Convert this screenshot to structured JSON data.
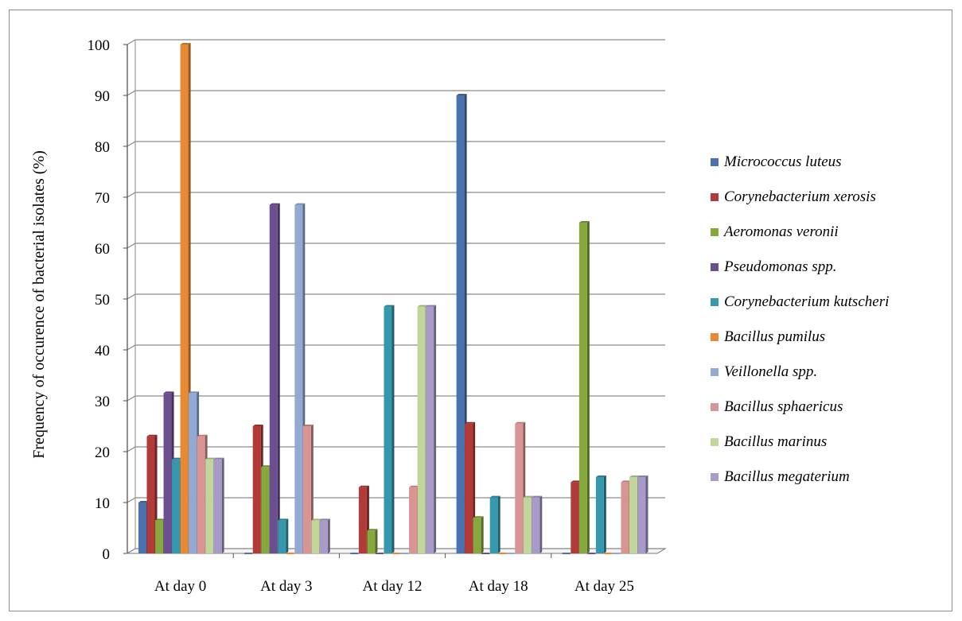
{
  "chart_data": {
    "type": "bar",
    "title": "",
    "xlabel": "",
    "ylabel": "Frequency of occurence of bacterial isolates (%)",
    "ylim": [
      0,
      100
    ],
    "yticks": [
      0,
      10,
      20,
      30,
      40,
      50,
      60,
      70,
      80,
      90,
      100
    ],
    "grid": true,
    "legend_position": "right",
    "categories": [
      "At day 0",
      "At day 3",
      "At day 12",
      "At day 18",
      "At day 25"
    ],
    "series": [
      {
        "name": "Micrococcus luteus",
        "color": "#4a72b0",
        "values": [
          10,
          0,
          0,
          90,
          0
        ]
      },
      {
        "name": "Corynebacterium xerosis",
        "color": "#b23b38",
        "values": [
          23,
          25,
          13,
          25.5,
          14
        ]
      },
      {
        "name": "Aeromonas veronii",
        "color": "#86a93d",
        "values": [
          6.5,
          17,
          4.5,
          7,
          65
        ]
      },
      {
        "name": "Pseudomonas spp.",
        "color": "#6c4f91",
        "values": [
          31.5,
          68.5,
          0,
          0,
          0
        ]
      },
      {
        "name": "Corynebacterium kutscheri",
        "color": "#3698ad",
        "values": [
          18.5,
          6.5,
          48.5,
          11,
          15
        ]
      },
      {
        "name": "Bacillus pumilus",
        "color": "#e88a34",
        "values": [
          100,
          0,
          0,
          0,
          0
        ]
      },
      {
        "name": "Veillonella spp.",
        "color": "#92a9d3",
        "values": [
          31.5,
          68.5,
          0,
          0,
          0
        ]
      },
      {
        "name": "Bacillus sphaericus",
        "color": "#d99593",
        "values": [
          23,
          25,
          13,
          25.5,
          14
        ]
      },
      {
        "name": "Bacillus marinus",
        "color": "#c2d69b",
        "values": [
          18.5,
          6.5,
          48.5,
          11,
          15
        ]
      },
      {
        "name": "Bacillus megaterium",
        "color": "#a99bc9",
        "values": [
          18.5,
          6.5,
          48.5,
          11,
          15
        ]
      }
    ]
  }
}
